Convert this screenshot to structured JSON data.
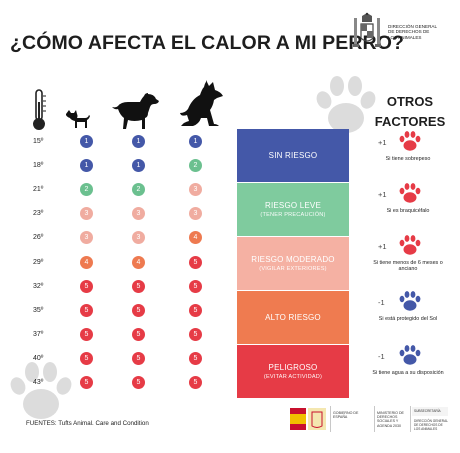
{
  "title": "¿CÓMO AFECTA EL CALOR A MI PERRO?",
  "ministry_lines": [
    "DIRECCIÓN GENERAL",
    "DE DERECHOS DE",
    "LOS ANIMALES"
  ],
  "temperatures": [
    "15º",
    "18º",
    "21º",
    "23º",
    "26º",
    "29º",
    "32º",
    "35º",
    "37º",
    "40º",
    "43º"
  ],
  "levels": {
    "small": [
      1,
      1,
      2,
      3,
      3,
      4,
      5,
      5,
      5,
      5,
      5
    ],
    "medium": [
      1,
      1,
      2,
      3,
      3,
      4,
      5,
      5,
      5,
      5,
      5
    ],
    "large": [
      1,
      2,
      3,
      3,
      4,
      5,
      5,
      5,
      5,
      5,
      5
    ]
  },
  "level_colors": {
    "1": "#4458a8",
    "2": "#6bc08f",
    "3": "#f0aca0",
    "4": "#ee7a50",
    "5": "#e63b46"
  },
  "risks": [
    {
      "label": "SIN RIESGO",
      "sub": "",
      "color": "#4458a8"
    },
    {
      "label": "RIESGO LEVE",
      "sub": "(TENER PRECAUCIÓN)",
      "color": "#7fcb9e"
    },
    {
      "label": "RIESGO MODERADO",
      "sub": "(VIGILAR EXTERIORES)",
      "color": "#f5b1a3"
    },
    {
      "label": "ALTO RIESGO",
      "sub": "",
      "color": "#ef7b50"
    },
    {
      "label": "PELIGROSO",
      "sub": "(EVITAR ACTIVIDAD)",
      "color": "#e63b46"
    }
  ],
  "otros_factores": {
    "line1": "OTROS",
    "line2": "FACTORES"
  },
  "factors": [
    {
      "value": "+1",
      "caption": "Si tiene sobrepeso",
      "color": "#e63b46"
    },
    {
      "value": "+1",
      "caption": "Si es braquicéfalo",
      "color": "#e63b46"
    },
    {
      "value": "+1",
      "caption": "Si tiene menos de 6 meses o anciano",
      "color": "#e63b46"
    },
    {
      "value": "-1",
      "caption": "Si está protegido del Sol",
      "color": "#4458a8"
    },
    {
      "value": "-1",
      "caption": "Si tiene agua a su disposición",
      "color": "#4458a8"
    }
  ],
  "sources": "FUENTES: Tufts Animal. Care and Condition",
  "govt_logo": {
    "gobierno": "GOBIERNO DE ESPAÑA",
    "ministerio": "MINISTERIO DE DERECHOS SOCIALES Y AGENDA 2030",
    "subsecretaria": "SUBSECRETARÍA",
    "direccion": "DIRECCIÓN GENERAL DE DERECHOS DE LOS ANIMALES"
  }
}
